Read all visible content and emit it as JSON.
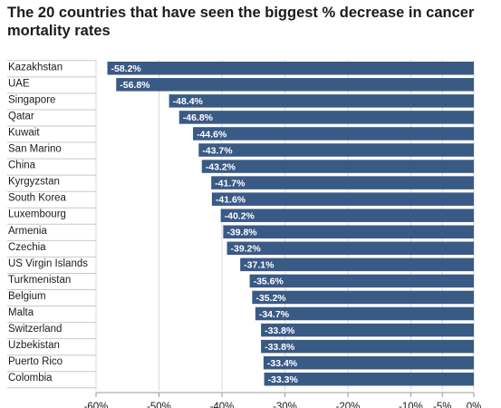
{
  "chart_data": {
    "type": "bar",
    "orientation": "horizontal",
    "title": "The 20 countries that have seen the biggest % decrease in cancer mortality rates",
    "categories": [
      "Kazakhstan",
      "UAE",
      "Singapore",
      "Qatar",
      "Kuwait",
      "San Marino",
      "China",
      "Kyrgyzstan",
      "South Korea",
      "Luxembourg",
      "Armenia",
      "Czechia",
      "US Virgin Islands",
      "Turkmenistan",
      "Belgium",
      "Malta",
      "Switzerland",
      "Uzbekistan",
      "Puerto Rico",
      "Colombia"
    ],
    "values": [
      -58.2,
      -56.8,
      -48.4,
      -46.8,
      -44.6,
      -43.7,
      -43.2,
      -41.7,
      -41.6,
      -40.2,
      -39.8,
      -39.2,
      -37.1,
      -35.6,
      -35.2,
      -34.7,
      -33.8,
      -33.8,
      -33.4,
      -33.3
    ],
    "value_labels": [
      "-58.2%",
      "-56.8%",
      "-48.4%",
      "-46.8%",
      "-44.6%",
      "-43.7%",
      "-43.2%",
      "-41.7%",
      "-41.6%",
      "-40.2%",
      "-39.8%",
      "-39.2%",
      "-37.1%",
      "-35.6%",
      "-35.2%",
      "-34.7%",
      "-33.8%",
      "-33.8%",
      "-33.4%",
      "-33.3%"
    ],
    "xlim": [
      -60,
      0
    ],
    "xticks": [
      -60,
      -50,
      -40,
      -30,
      -20,
      -10,
      -5,
      0
    ],
    "xtick_labels": [
      "-60%",
      "-50%",
      "-40%",
      "-30%",
      "-20%",
      "-10%",
      "-5%",
      "0%"
    ],
    "xlabel": "",
    "ylabel": "",
    "grid": "vertical",
    "bar_color": "#3a5a86"
  }
}
